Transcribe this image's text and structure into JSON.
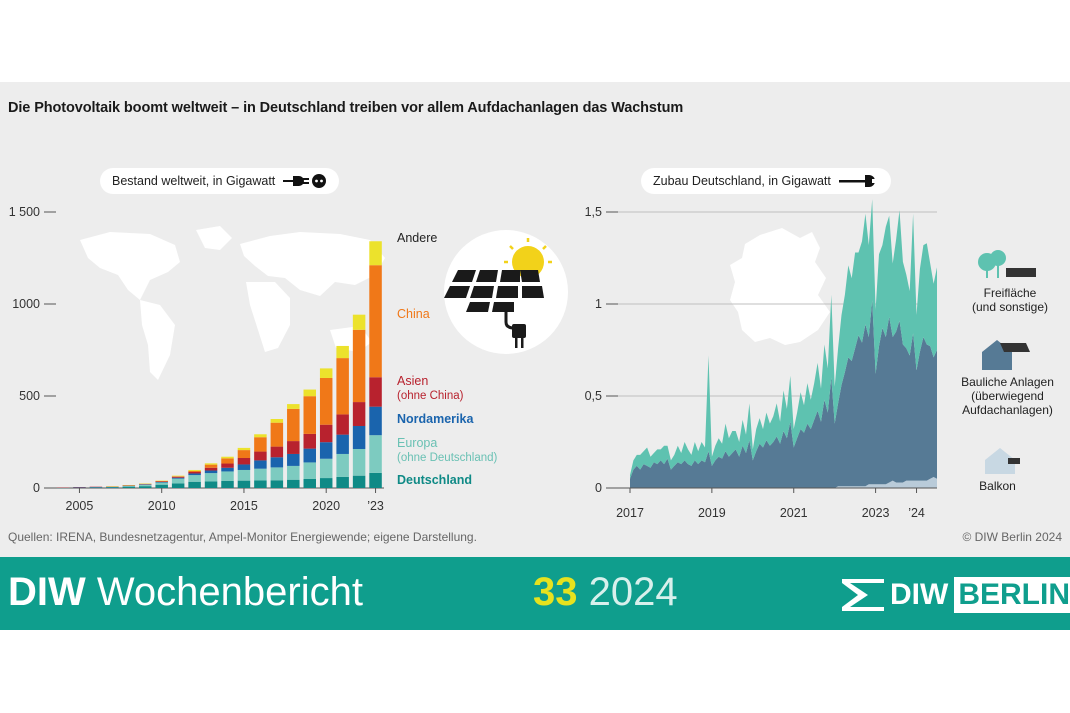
{
  "title": "Die Photovoltaik boomt weltweit – in Deutschland treiben vor allem Aufdachanlagen das Wachstum",
  "left_pill": "Bestand weltweit, in Gigawatt",
  "right_pill": "Zubau Deutschland, in Gigawatt",
  "source": "Quellen: IRENA, Bundesnetzagentur, Ampel-Monitor Energiewende; eigene Darstellung.",
  "copyright": "© DIW Berlin 2024",
  "banner": {
    "brand_bold": "DIW",
    "brand_rest": " Wochenbericht",
    "issue_number": "33",
    "issue_year": " 2024",
    "logo_diw": "DIW",
    "logo_berlin": "BERLIN"
  },
  "colors": {
    "Deutschland": "#0f8a86",
    "Europa": "#7dcbc0",
    "Nordamerika": "#1a64ad",
    "Asien": "#b8222e",
    "China": "#f07818",
    "Andere": "#ece22c",
    "freiflaeche": "#5ec2b0",
    "bauliche": "#567a95",
    "balkon": "#b9cbd9"
  },
  "legend_left": {
    "andere": "Andere",
    "china": "China",
    "asien_1": "Asien",
    "asien_2": "(ohne China)",
    "nordamerika": "Nordamerika",
    "europa_1": "Europa",
    "europa_2": "(ohne Deutschland)",
    "deutschland": "Deutschland"
  },
  "legend_right": {
    "frei_1": "Freifläche",
    "frei_2": "(und sonstige)",
    "bau_1": "Bauliche Anlagen",
    "bau_2": "(überwiegend",
    "bau_3": "Aufdachanlagen)",
    "balkon": "Balkon"
  },
  "chart_data": [
    {
      "type": "bar",
      "stacked": true,
      "title": "Bestand weltweit, in Gigawatt",
      "categories": [
        2004,
        2005,
        2006,
        2007,
        2008,
        2009,
        2010,
        2011,
        2012,
        2013,
        2014,
        2015,
        2016,
        2017,
        2018,
        2019,
        2020,
        2021,
        2022,
        2023
      ],
      "x_tick_labels": [
        "2005",
        "2010",
        "2015",
        "2020",
        "’23"
      ],
      "y_ticks": [
        "0",
        "500",
        "1000",
        "1 500"
      ],
      "ylim": [
        0,
        1500
      ],
      "series": [
        {
          "name": "Deutschland",
          "values": [
            1,
            2,
            3,
            4,
            6,
            10,
            18,
            25,
            34,
            36,
            38,
            40,
            41,
            42,
            45,
            49,
            54,
            60,
            67,
            82
          ]
        },
        {
          "name": "Europa (ohne Deutschland)",
          "values": [
            0,
            0,
            1,
            1,
            5,
            8,
            12,
            26,
            36,
            45,
            52,
            58,
            64,
            70,
            75,
            90,
            105,
            125,
            145,
            205
          ]
        },
        {
          "name": "Nordamerika",
          "values": [
            0,
            1,
            1,
            1,
            1,
            2,
            3,
            5,
            9,
            14,
            20,
            30,
            45,
            55,
            65,
            75,
            90,
            105,
            125,
            155
          ]
        },
        {
          "name": "Asien (ohne China)",
          "values": [
            1,
            2,
            2,
            2,
            3,
            3,
            4,
            5,
            8,
            15,
            23,
            35,
            48,
            58,
            70,
            80,
            95,
            110,
            130,
            160
          ]
        },
        {
          "name": "China",
          "values": [
            0,
            0,
            0,
            0,
            0,
            0,
            1,
            3,
            6,
            17,
            28,
            43,
            78,
            130,
            175,
            205,
            254,
            306,
            393,
            609
          ]
        },
        {
          "name": "Andere",
          "values": [
            0,
            0,
            0,
            1,
            1,
            1,
            2,
            3,
            5,
            7,
            9,
            12,
            16,
            20,
            26,
            36,
            52,
            66,
            82,
            130
          ]
        }
      ]
    },
    {
      "type": "area",
      "stacked": true,
      "title": "Zubau Deutschland, in Gigawatt",
      "x_tick_labels": [
        "2017",
        "2019",
        "2021",
        "2023",
        "’24"
      ],
      "y_ticks": [
        "0",
        "0,5",
        "1",
        "1,5"
      ],
      "ylim": [
        0,
        1.5
      ],
      "x_start": "2017-01",
      "x_end": "2024-07",
      "series": [
        {
          "name": "Balkon",
          "values": [
            0,
            0,
            0,
            0,
            0,
            0,
            0,
            0,
            0,
            0,
            0,
            0,
            0,
            0,
            0,
            0,
            0,
            0,
            0,
            0,
            0,
            0,
            0,
            0,
            0,
            0,
            0,
            0,
            0,
            0,
            0,
            0,
            0,
            0,
            0,
            0,
            0,
            0,
            0,
            0,
            0,
            0,
            0,
            0,
            0,
            0,
            0,
            0,
            0,
            0,
            0,
            0,
            0,
            0,
            0,
            0,
            0,
            0,
            0,
            0,
            0,
            0.01,
            0.01,
            0.01,
            0.01,
            0.01,
            0.01,
            0.01,
            0.01,
            0.01,
            0.02,
            0.02,
            0.02,
            0.02,
            0.02,
            0.02,
            0.03,
            0.04,
            0.03,
            0.03,
            0.03,
            0.04,
            0.04,
            0.04,
            0.04,
            0.04,
            0.04,
            0.04,
            0.05,
            0.06,
            0.05
          ]
        },
        {
          "name": "Bauliche Anlagen (überwiegend Aufdachanlagen)",
          "values": [
            0.05,
            0.1,
            0.12,
            0.1,
            0.13,
            0.12,
            0.11,
            0.14,
            0.13,
            0.15,
            0.13,
            0.16,
            0.1,
            0.12,
            0.14,
            0.13,
            0.15,
            0.13,
            0.12,
            0.15,
            0.13,
            0.15,
            0.14,
            0.2,
            0.12,
            0.15,
            0.17,
            0.16,
            0.2,
            0.17,
            0.19,
            0.21,
            0.17,
            0.23,
            0.19,
            0.26,
            0.15,
            0.2,
            0.24,
            0.22,
            0.26,
            0.23,
            0.25,
            0.28,
            0.24,
            0.31,
            0.27,
            0.36,
            0.22,
            0.27,
            0.32,
            0.3,
            0.35,
            0.32,
            0.37,
            0.42,
            0.36,
            0.48,
            0.41,
            0.6,
            0.35,
            0.45,
            0.55,
            0.62,
            0.7,
            0.68,
            0.75,
            0.82,
            0.78,
            0.88,
            0.8,
            1.0,
            0.6,
            0.75,
            0.85,
            0.8,
            0.9,
            0.78,
            0.82,
            0.88,
            0.75,
            0.72,
            0.68,
            0.8,
            0.6,
            0.7,
            0.78,
            0.74,
            0.72,
            0.65,
            0.7
          ]
        },
        {
          "name": "Freifläche (und sonstige)",
          "values": [
            0.02,
            0.05,
            0.06,
            0.08,
            0.07,
            0.1,
            0.06,
            0.05,
            0.08,
            0.06,
            0.1,
            0.07,
            0.05,
            0.06,
            0.09,
            0.06,
            0.1,
            0.08,
            0.06,
            0.1,
            0.07,
            0.1,
            0.08,
            0.52,
            0.05,
            0.08,
            0.1,
            0.08,
            0.15,
            0.1,
            0.12,
            0.1,
            0.08,
            0.14,
            0.1,
            0.2,
            0.06,
            0.12,
            0.14,
            0.1,
            0.15,
            0.12,
            0.14,
            0.18,
            0.12,
            0.22,
            0.16,
            0.25,
            0.1,
            0.14,
            0.2,
            0.15,
            0.22,
            0.16,
            0.2,
            0.26,
            0.18,
            0.3,
            0.24,
            0.45,
            0.2,
            0.3,
            0.38,
            0.42,
            0.5,
            0.45,
            0.52,
            0.45,
            0.55,
            0.6,
            0.5,
            0.55,
            0.35,
            0.5,
            0.45,
            0.6,
            0.55,
            0.4,
            0.5,
            0.6,
            0.45,
            0.4,
            0.35,
            0.65,
            0.3,
            0.45,
            0.5,
            0.55,
            0.45,
            0.4,
            0.45
          ]
        }
      ]
    }
  ]
}
